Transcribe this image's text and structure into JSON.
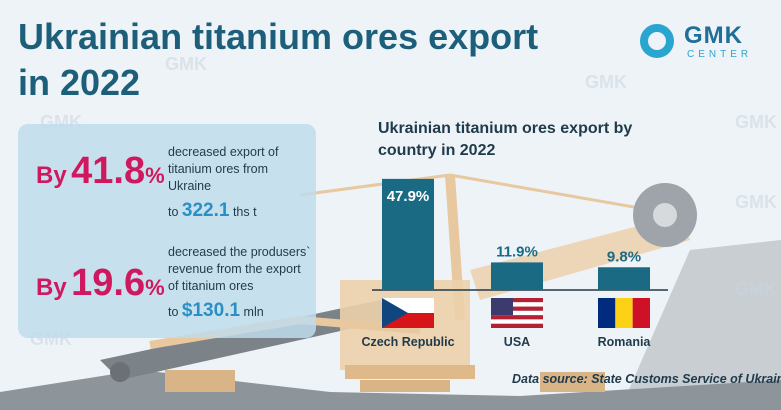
{
  "title": "Ukrainian titanium ores export in 2022",
  "logo": {
    "main": "GMK",
    "sub": "CENTER"
  },
  "watermark": {
    "main": "GMK",
    "sub": "CENTER"
  },
  "stats": [
    {
      "prefix": "By",
      "number": "41.8",
      "unit": "%",
      "description": "decreased export of titanium ores from Ukraine",
      "result_prefix": "to",
      "result_value": "322.1",
      "result_unit": "ths t"
    },
    {
      "prefix": "By",
      "number": "19.6",
      "unit": "%",
      "description": "decreased the produsers` revenue from the export of titanium ores",
      "result_prefix": "to",
      "result_value": "$130.1",
      "result_unit": "mln"
    }
  ],
  "chart_data": {
    "type": "bar",
    "title": "Ukrainian titanium ores export by country in 2022",
    "categories": [
      "Czech Republic",
      "USA",
      "Romania"
    ],
    "values": [
      47.9,
      11.9,
      9.8
    ],
    "value_labels": [
      "47.9%",
      "11.9%",
      "9.8%"
    ],
    "unit": "%",
    "ylim": [
      0,
      50
    ],
    "grid": false,
    "bar_color": "#1b6a84"
  },
  "credit": "Data source: State Customs Service of  Ukraine",
  "colors": {
    "accent": "#d0185e",
    "title": "#1d5f7a",
    "highlight": "#2a8fc4",
    "machine": "#ebcaa0"
  }
}
